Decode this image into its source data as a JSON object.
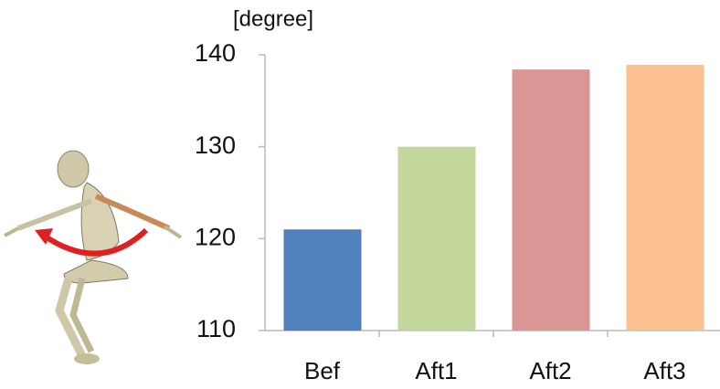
{
  "chart_data": {
    "type": "bar",
    "y_label": "[degree]",
    "categories": [
      "Bef",
      "Aft1",
      "Aft2",
      "Aft3"
    ],
    "values": [
      121,
      130,
      138.4,
      138.9
    ],
    "colors": [
      "#4f81bd",
      "#c3d69b",
      "#d99694",
      "#fac090"
    ],
    "ylim": [
      110,
      140
    ],
    "yticks": [
      110,
      120,
      130,
      140
    ],
    "grid": false
  }
}
